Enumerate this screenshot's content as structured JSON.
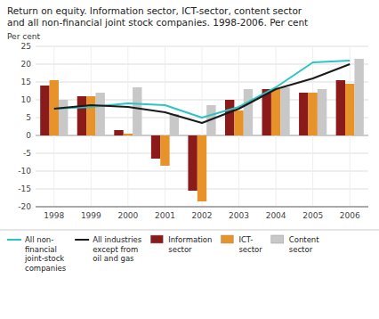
{
  "chart_data": {
    "type": "bar",
    "title": "Return on equity. Information sector, ICT-sector, content sector\nand all non-financial joint stock companies. 1998-2006. Per cent",
    "y_label": "Per cent",
    "categories": [
      "1998",
      "1999",
      "2000",
      "2001",
      "2002",
      "2003",
      "2004",
      "2005",
      "2006"
    ],
    "series": [
      {
        "name": "All non-\nfinancial\njoint-stock\ncompanies",
        "type": "line",
        "color": "#2EC4C4",
        "values": [
          7.5,
          8.0,
          9.0,
          8.5,
          5.0,
          8.0,
          13.5,
          20.5,
          21.0
        ]
      },
      {
        "name": "All industries\nexcept from\noil and gas",
        "type": "line",
        "color": "#1a1a1a",
        "values": [
          7.5,
          8.5,
          8.0,
          6.5,
          3.5,
          7.5,
          13.0,
          16.0,
          20.0
        ]
      },
      {
        "name": "Information\nsector",
        "type": "bar",
        "color": "#8B1A1A",
        "values": [
          14.0,
          11.0,
          1.5,
          -6.5,
          -15.5,
          10.0,
          13.0,
          12.0,
          15.5
        ]
      },
      {
        "name": "ICT-\nsector",
        "type": "bar",
        "color": "#E8922A",
        "values": [
          15.5,
          11.0,
          0.5,
          -8.5,
          -18.5,
          7.0,
          13.0,
          12.0,
          14.5
        ]
      },
      {
        "name": "Content\nsector",
        "type": "bar",
        "color": "#C8C8C8",
        "values": [
          10.0,
          12.0,
          13.5,
          6.0,
          8.5,
          13.0,
          13.5,
          13.0,
          21.5
        ]
      }
    ],
    "ylim": [
      -20,
      25
    ],
    "yticks": [
      -20,
      -15,
      -10,
      -5,
      0,
      5,
      10,
      15,
      20,
      25
    ],
    "grid": true,
    "legend": "bottom"
  }
}
